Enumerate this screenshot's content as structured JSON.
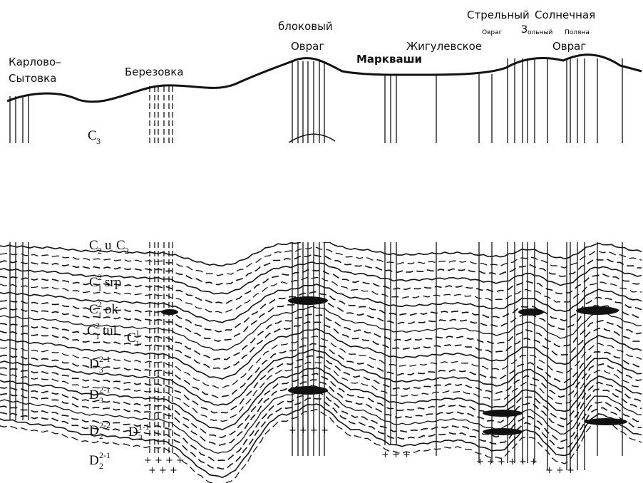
{
  "locations": [
    {
      "lines": [
        "Карлово–",
        "Сытовка"
      ]
    },
    {
      "lines": [
        "Березовка"
      ]
    },
    {
      "lines": [
        "блоковый",
        "Овраг"
      ]
    },
    {
      "lines": [
        "Маркваши"
      ]
    },
    {
      "lines": [
        "Жигулевское"
      ]
    },
    {
      "lines": [
        "Стрельный"
      ]
    },
    {
      "lines": [
        "Солнечная"
      ]
    },
    {
      "lines": [
        "Овраг"
      ]
    },
    {
      "lines": [
        "З",
        "ольный",
        "Поляна"
      ]
    },
    {
      "lines": [
        "Овраг"
      ]
    }
  ],
  "strata": [
    {
      "symbol": "C",
      "sub": "3"
    },
    {
      "symbol": "C",
      "sub": "2",
      "suffix": "u"
    },
    {
      "symbol": "C",
      "sub": "2"
    },
    {
      "symbol": "C",
      "sub": "1",
      "sup": "2",
      "suffix": "srp"
    },
    {
      "symbol": "C",
      "sub": "1",
      "sup": "2",
      "suffix": "ok"
    },
    {
      "symbol": "C",
      "sub": "1",
      "sup": "2",
      "suffix": "tul"
    },
    {
      "symbol": "C",
      "sub": "1",
      "sup": "1"
    },
    {
      "symbol": "D",
      "sub": "3",
      "sup": "2-1"
    },
    {
      "symbol": "D",
      "sub": "3",
      "sup": "2-1"
    },
    {
      "symbol": "D",
      "sub": "2",
      "sup": "2-2"
    },
    {
      "symbol": "D",
      "sub": "3",
      "sup": "1-1"
    },
    {
      "symbol": "D",
      "sub": "2",
      "sup": "2-1"
    }
  ]
}
